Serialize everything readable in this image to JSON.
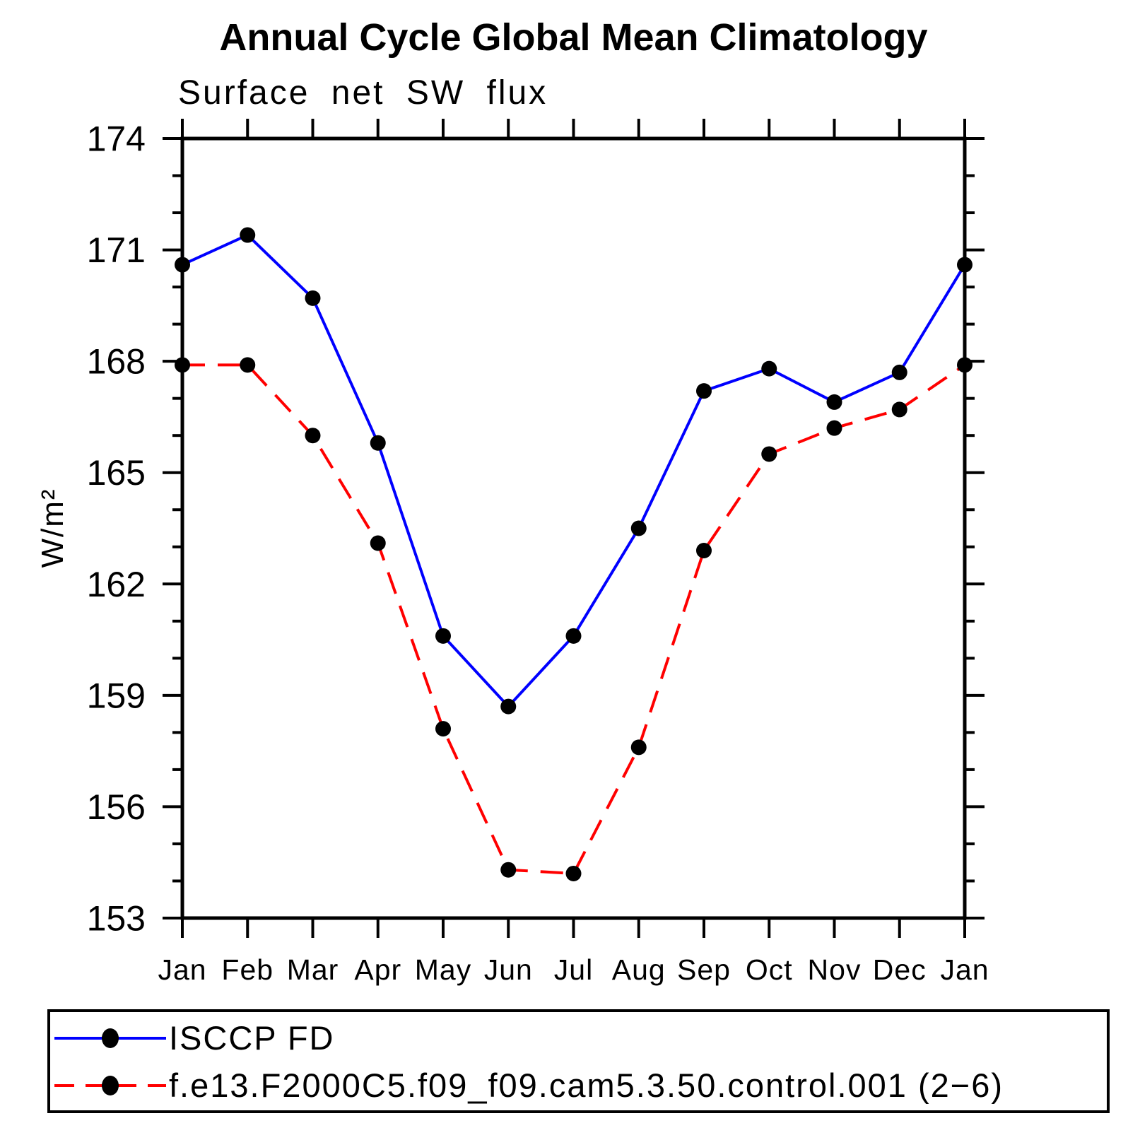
{
  "chart_data": {
    "type": "line",
    "title": "Annual Cycle Global Mean Climatology",
    "subtitle": "Surface net SW flux",
    "ylabel": "W/m²",
    "categories": [
      "Jan",
      "Feb",
      "Mar",
      "Apr",
      "May",
      "Jun",
      "Jul",
      "Aug",
      "Sep",
      "Oct",
      "Nov",
      "Dec",
      "Jan"
    ],
    "series": [
      {
        "name": "ISCCP FD",
        "color": "#0000ff",
        "line_style": "solid",
        "marker_color": "#000000",
        "values": [
          170.6,
          171.4,
          169.7,
          165.8,
          160.6,
          158.7,
          160.6,
          163.5,
          167.2,
          167.8,
          166.9,
          167.7,
          170.6
        ]
      },
      {
        "name": "f.e13.F2000C5.f09_f09.cam5.3.50.control.001 (2−6)",
        "color": "#ff0000",
        "line_style": "dashed",
        "marker_color": "#000000",
        "values": [
          167.9,
          167.9,
          166.0,
          163.1,
          158.1,
          154.3,
          154.2,
          157.6,
          162.9,
          165.5,
          166.2,
          166.7,
          167.9
        ]
      }
    ],
    "ylim": [
      153,
      174
    ],
    "ytick_major_step": 3,
    "ytick_minor_step": 1,
    "grid": false,
    "legend_position": "bottom-box"
  }
}
